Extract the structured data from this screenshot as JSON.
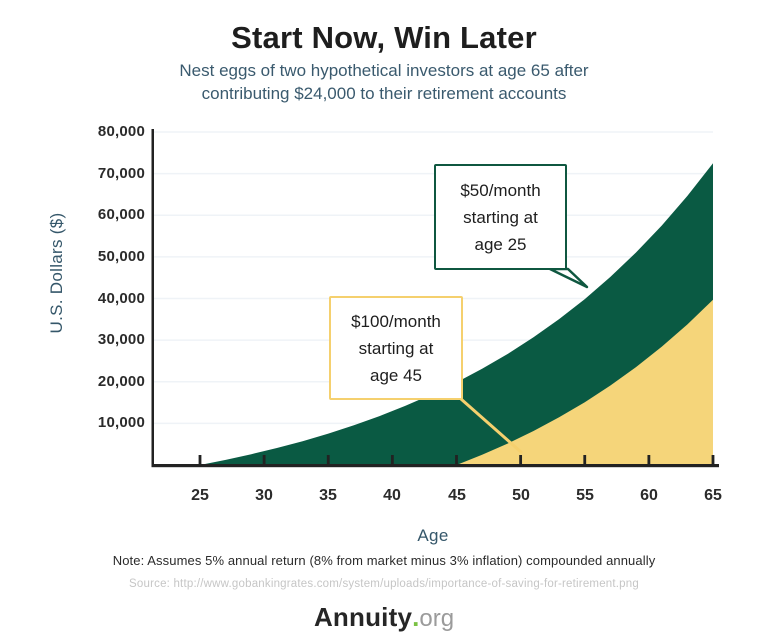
{
  "title": "Start Now, Win Later",
  "subtitle_line1": "Nest eggs of two hypothetical investors at age 65 after",
  "subtitle_line2": "contributing $24,000 to their retirement accounts",
  "note": "Note: Assumes 5% annual return (8% from market minus 3% inflation) compounded annually",
  "source": "Source: http://www.gobankingrates.com/system/uploads/importance-of-saving-for-retirement.png",
  "logo": {
    "name": "Annuity",
    "dot": ".",
    "tld": "org"
  },
  "colors": {
    "green_area": "#0A5A43",
    "green_border": "#0F5740",
    "yellow_area": "#F5D57A",
    "yellow_border": "#F5D06E",
    "axis": "#222222",
    "grid": "#EFF3F7",
    "tick_label": "#2B2B2B",
    "slate_text": "#35576A",
    "logo_green": "#7AC143"
  },
  "chart_data": {
    "type": "area",
    "title": "Start Now, Win Later",
    "xlabel": "Age",
    "ylabel": "U.S. Dollars ($)",
    "xlim": [
      25,
      65
    ],
    "ylim": [
      0,
      80000
    ],
    "grid": "horizontal, faint",
    "legend": "callout boxes with leader lines",
    "x_ticks": [
      {
        "value": 25,
        "label": "25"
      },
      {
        "value": 30,
        "label": "30"
      },
      {
        "value": 35,
        "label": "35"
      },
      {
        "value": 40,
        "label": "40"
      },
      {
        "value": 45,
        "label": "45"
      },
      {
        "value": 50,
        "label": "50"
      },
      {
        "value": 55,
        "label": "55"
      },
      {
        "value": 60,
        "label": "60"
      },
      {
        "value": 65,
        "label": "65"
      }
    ],
    "y_ticks": [
      {
        "value": 10000,
        "label": "10,000"
      },
      {
        "value": 20000,
        "label": "20,000"
      },
      {
        "value": 30000,
        "label": "30,000"
      },
      {
        "value": 40000,
        "label": "40,000"
      },
      {
        "value": 50000,
        "label": "50,000"
      },
      {
        "value": 60000,
        "label": "60,000"
      },
      {
        "value": 70000,
        "label": "70,000"
      },
      {
        "value": 80000,
        "label": "80,000"
      }
    ],
    "series": [
      {
        "name": "$50/month starting at age 25",
        "color": "#0A5A43",
        "x": [
          25,
          27,
          29,
          31,
          33,
          35,
          37,
          39,
          41,
          43,
          45,
          47,
          49,
          51,
          53,
          55,
          57,
          59,
          61,
          63,
          65
        ],
        "values": [
          0,
          1230,
          2586,
          4081,
          5729,
          7547,
          9550,
          11759,
          14194,
          16879,
          19840,
          23103,
          26701,
          30668,
          35042,
          39863,
          45179,
          51040,
          57502,
          64626,
          72480
        ]
      },
      {
        "name": "$100/month starting at age 45",
        "color": "#F5D57A",
        "x": [
          45,
          47,
          49,
          51,
          53,
          55,
          57,
          59,
          61,
          63,
          65
        ],
        "values": [
          0,
          2460,
          5172,
          8162,
          11459,
          15094,
          19101,
          23518,
          28389,
          33759,
          39679
        ]
      }
    ],
    "annotations": [
      {
        "lines": [
          "$50/month",
          "starting at",
          "age 25"
        ],
        "target_age": 57,
        "style": "green box"
      },
      {
        "lines": [
          "$100/month",
          "starting at",
          "age 45"
        ],
        "target_age": 50,
        "style": "yellow box"
      }
    ]
  }
}
